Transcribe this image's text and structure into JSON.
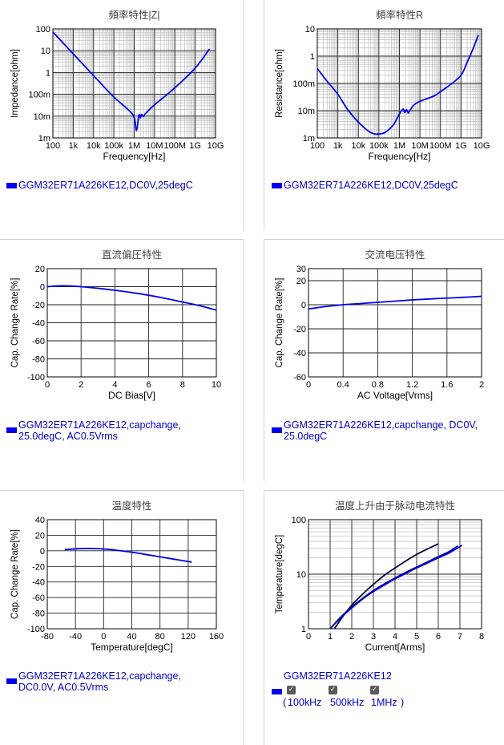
{
  "chart_data": [
    {
      "type": "line",
      "title": "頻率特性|Z|",
      "xlabel": "Frequency[Hz]",
      "ylabel": "Impedance[ohm]",
      "xscale": "log",
      "yscale": "log",
      "xlim": [
        100,
        10000000000
      ],
      "ylim": [
        0.001,
        100
      ],
      "xticks": [
        "100",
        "1k",
        "10k",
        "100k",
        "1M",
        "10M",
        "100M",
        "1G",
        "10G"
      ],
      "yticks": [
        "1m",
        "10m",
        "100m",
        "1",
        "10",
        "100"
      ],
      "series": [
        {
          "name": "GGM32ER71A226KE12,DC0V,25degC",
          "color": "#0000ee",
          "x": [
            100,
            1000,
            10000,
            100000,
            500000,
            1000000,
            1300000,
            1700000,
            2000000,
            2300000,
            2800000,
            3300000,
            5000000,
            10000000,
            100000000,
            1000000000,
            5000000000
          ],
          "y": [
            72,
            7.2,
            0.72,
            0.075,
            0.02,
            0.0085,
            0.0022,
            0.011,
            0.0085,
            0.012,
            0.0095,
            0.012,
            0.018,
            0.033,
            0.2,
            1.6,
            12
          ]
        }
      ]
    },
    {
      "type": "line",
      "title": "頻率特性R",
      "xlabel": "Frequency[Hz]",
      "ylabel": "Resistance[ohm]",
      "xscale": "log",
      "yscale": "log",
      "xlim": [
        100,
        10000000000
      ],
      "ylim": [
        0.001,
        10
      ],
      "xticks": [
        "100",
        "1k",
        "10k",
        "100k",
        "1M",
        "10M",
        "100M",
        "1G",
        "10G"
      ],
      "yticks": [
        "1m",
        "10m",
        "100m",
        "1",
        "10"
      ],
      "series": [
        {
          "name": "GGM32ER71A226KE12,DC0V,25degC",
          "color": "#0000ee",
          "x": [
            100,
            300,
            1000,
            3000,
            10000,
            30000,
            60000,
            100000,
            200000,
            500000,
            1000000,
            1500000,
            1800000,
            2200000,
            2700000,
            3200000,
            5000000,
            10000000,
            50000000,
            100000000,
            300000000,
            1000000000,
            2000000000,
            4000000000,
            7000000000
          ],
          "y": [
            0.35,
            0.12,
            0.04,
            0.011,
            0.0038,
            0.0018,
            0.0014,
            0.0014,
            0.0016,
            0.003,
            0.0075,
            0.0115,
            0.0085,
            0.011,
            0.0082,
            0.01,
            0.016,
            0.022,
            0.035,
            0.05,
            0.09,
            0.2,
            0.6,
            2.0,
            6.0
          ]
        }
      ]
    },
    {
      "type": "line",
      "title": "直流偏圧特性",
      "xlabel": "DC Bias[V]",
      "ylabel": "Cap. Change Rate[%]",
      "xlim": [
        0,
        10
      ],
      "ylim": [
        -100,
        20
      ],
      "xticks": [
        "0",
        "2",
        "4",
        "6",
        "8",
        "10"
      ],
      "yticks": [
        "-100",
        "-80",
        "-60",
        "-40",
        "-20",
        "0",
        "20"
      ],
      "series": [
        {
          "name": "GGM32ER71A226KE12,capchange, 25.0degC, AC0.5Vrms",
          "color": "#0000ee",
          "x": [
            0,
            0.5,
            1,
            1.5,
            2,
            3,
            4,
            5,
            6,
            7,
            8,
            9,
            10
          ],
          "y": [
            0,
            0.8,
            1,
            0.6,
            0,
            -1.8,
            -4,
            -6.5,
            -9.5,
            -13,
            -17,
            -21,
            -26
          ]
        }
      ]
    },
    {
      "type": "line",
      "title": "交流电压特性",
      "xlabel": "AC Voltage[Vrms]",
      "ylabel": "Cap. Change Rate[%]",
      "xlim": [
        0,
        2
      ],
      "ylim": [
        -60,
        30
      ],
      "xticks": [
        "0",
        "0.4",
        "0.8",
        "1.2",
        "1.6",
        "2"
      ],
      "yticks": [
        "-60",
        "-40",
        "-20",
        "0",
        "20",
        "30"
      ],
      "series": [
        {
          "name": "GGM32ER71A226KE12,capchange, DC0V, 25.0degC",
          "color": "#0000ee",
          "x": [
            0,
            0.2,
            0.4,
            0.6,
            0.8,
            1.0,
            1.2,
            1.4,
            1.6,
            1.8,
            2.0
          ],
          "y": [
            -3.5,
            -1.5,
            0,
            1,
            2,
            3,
            4,
            4.8,
            5.5,
            6.2,
            7
          ]
        }
      ]
    },
    {
      "type": "line",
      "title": "温度特性",
      "xlabel": "Temperature[degC]",
      "ylabel": "Cap. Change Rate[%]",
      "xlim": [
        -80,
        160
      ],
      "ylim": [
        -100,
        40
      ],
      "xticks": [
        "-80",
        "-40",
        "0",
        "40",
        "80",
        "120",
        "160"
      ],
      "yticks": [
        "-100",
        "-80",
        "-60",
        "-40",
        "-20",
        "0",
        "20",
        "40"
      ],
      "series": [
        {
          "name": "GGM32ER71A226KE12,capchange, DC0.0V, AC0.5Vrms",
          "color": "#0000ee",
          "x": [
            -55,
            -40,
            -25,
            -10,
            5,
            25,
            45,
            65,
            85,
            105,
            125
          ],
          "y": [
            1.5,
            2.5,
            3,
            2.8,
            2,
            0,
            -2.5,
            -5.5,
            -8.5,
            -11.5,
            -14.5
          ]
        }
      ]
    },
    {
      "type": "line",
      "title": "温度上升由于脉动电流特性",
      "xlabel": "Current[Arms]",
      "ylabel": "Temperature[degC]",
      "yscale": "log",
      "xlim": [
        0,
        8
      ],
      "ylim": [
        1,
        100
      ],
      "xticks": [
        "0",
        "1",
        "2",
        "3",
        "4",
        "5",
        "6",
        "7",
        "8"
      ],
      "yticks": [
        "1",
        "10",
        "100"
      ],
      "legend_title": "GGM32ER71A226KE12",
      "legend_items": [
        "100kHz",
        "500kHz",
        "1MHz"
      ],
      "series": [
        {
          "name": "100kHz",
          "color": "#000033",
          "x": [
            1.2,
            1.6,
            2,
            2.5,
            3,
            3.5,
            4,
            4.5,
            5,
            5.5,
            6
          ],
          "y": [
            1,
            1.7,
            2.7,
            4.3,
            6.5,
            9.5,
            13,
            17.5,
            23,
            29,
            36
          ]
        },
        {
          "name": "500kHz",
          "color": "#0000ee",
          "x": [
            1,
            1.5,
            2,
            2.5,
            3,
            3.5,
            4,
            4.5,
            5,
            5.5,
            6,
            6.5,
            7.1
          ],
          "y": [
            1,
            1.6,
            2.4,
            3.5,
            4.8,
            6.3,
            8.2,
            10.3,
            13,
            16,
            20,
            24.5,
            34
          ]
        },
        {
          "name": "1MHz",
          "color": "#000099",
          "x": [
            1,
            1.5,
            2,
            2.5,
            3,
            3.5,
            4,
            4.5,
            5,
            5.5,
            6,
            6.5,
            6.9
          ],
          "y": [
            1,
            1.65,
            2.5,
            3.6,
            5,
            6.6,
            8.5,
            10.8,
            13.5,
            16.8,
            21,
            26,
            33
          ]
        }
      ]
    }
  ]
}
